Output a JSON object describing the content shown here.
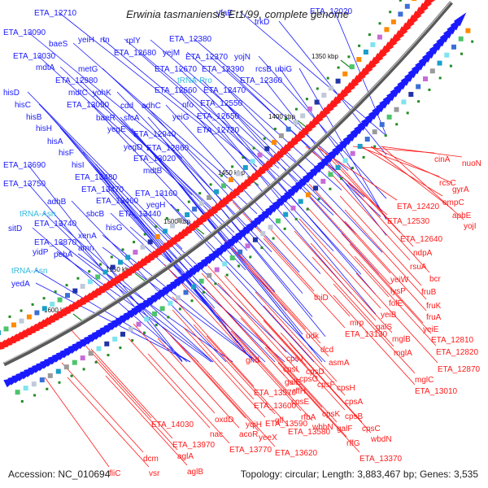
{
  "title": "Erwinia tasmaniensis Et1/99, complete genome",
  "footer": {
    "accession": "Accession: NC_010694",
    "summary": "Topology: circular; Length: 3,883,467 bp; Genes: 3,535"
  },
  "colors": {
    "forward_strand": "#1a1aff",
    "reverse_strand": "#ff1a1a",
    "rna_label": "#33bbdd",
    "tick_mark": "#228b22",
    "backbone": "#666666"
  },
  "ticks": [
    "1350 kbp",
    "1400 kbp",
    "1450 kbp",
    "1500 kbp",
    "1550 kbp",
    "1600 kbp"
  ],
  "forward_labels": [
    "ETA_12710",
    "yfaE",
    "ETA_12020",
    "ETA_13090",
    "yeiH",
    "rtn",
    "rplY",
    "ETA_12380",
    "trkD",
    "baeS",
    "ETA_12680",
    "yejM",
    "ETA_13030",
    "ETA_12370",
    "yojN",
    "mdtA",
    "metG",
    "ETA_12670",
    "ETA_12390",
    "rcsB",
    "ubiG",
    "ETA_12980",
    "tRNA-Pro",
    "ETA_12360",
    "hisD",
    "mdtC",
    "yohK",
    "ETA_12660",
    "ETA_12470",
    "hisC",
    "ETA_13050",
    "cdd",
    "adhC",
    "nfo",
    "ETA_12550",
    "hisB",
    "baeR",
    "sfcA",
    "yeiG",
    "ETA_12650",
    "hisH",
    "yegE",
    "ETA_12940",
    "ETA_12720",
    "hisA",
    "yegD",
    "ETA_12860",
    "hisF",
    "ETA_13020",
    "hisI",
    "mdtB",
    "ETA_13690",
    "ETA_13480",
    "ETA_13470",
    "ETA_13750",
    "adhB",
    "ETA_13460",
    "ETA_13160",
    "tRNA-Asn",
    "sbcB",
    "ETA_13440",
    "yegH",
    "ETA_13740",
    "hisG",
    "ETA_13870",
    "xenA",
    "sitD",
    "amn",
    "yidP",
    "pehA",
    "tRNA-Asn",
    "yedA"
  ],
  "reverse_labels": [
    "cinA",
    "nuoN",
    "rcsC",
    "gyrA",
    "ETA_12420",
    "ompC",
    "ETA_12530",
    "apbE",
    "yojI",
    "ETA_12640",
    "ndpA",
    "rsuA",
    "bcr",
    "yeiW",
    "lysP",
    "fruB",
    "thiD",
    "folE",
    "fruK",
    "yeiB",
    "fruA",
    "mrp",
    "galS",
    "yeiE",
    "ETA_13130",
    "mglB",
    "ETA_12810",
    "udk",
    "dcd",
    "mglA",
    "ETA_12820",
    "cpsJ",
    "asmA",
    "ETA_12870",
    "gnd",
    "cpsI",
    "cpsD",
    "cpsG",
    "mglC",
    "galE",
    "rffH",
    "cpsF",
    "cpsH",
    "ETA_13010",
    "ETA_13570",
    "cpsE",
    "cpsA",
    "ETA_13600",
    "rfbA",
    "glf",
    "cpsK",
    "cpsB",
    "ETA_13590",
    "galF",
    "cpsC",
    "oxdD",
    "ETA_14030",
    "yqiH",
    "ETA_13580",
    "wbbN",
    "wbdN",
    "nac",
    "acoR",
    "yeeX",
    "rffG",
    "ETA_13970",
    "ETA_13770",
    "ETA_13620",
    "ETA_13370",
    "dcm",
    "aglA",
    "fliC",
    "vsr",
    "aglB"
  ],
  "rna_genes": [
    "tRNA-Pro",
    "tRNA-Asn",
    "tRNA-Asn"
  ]
}
